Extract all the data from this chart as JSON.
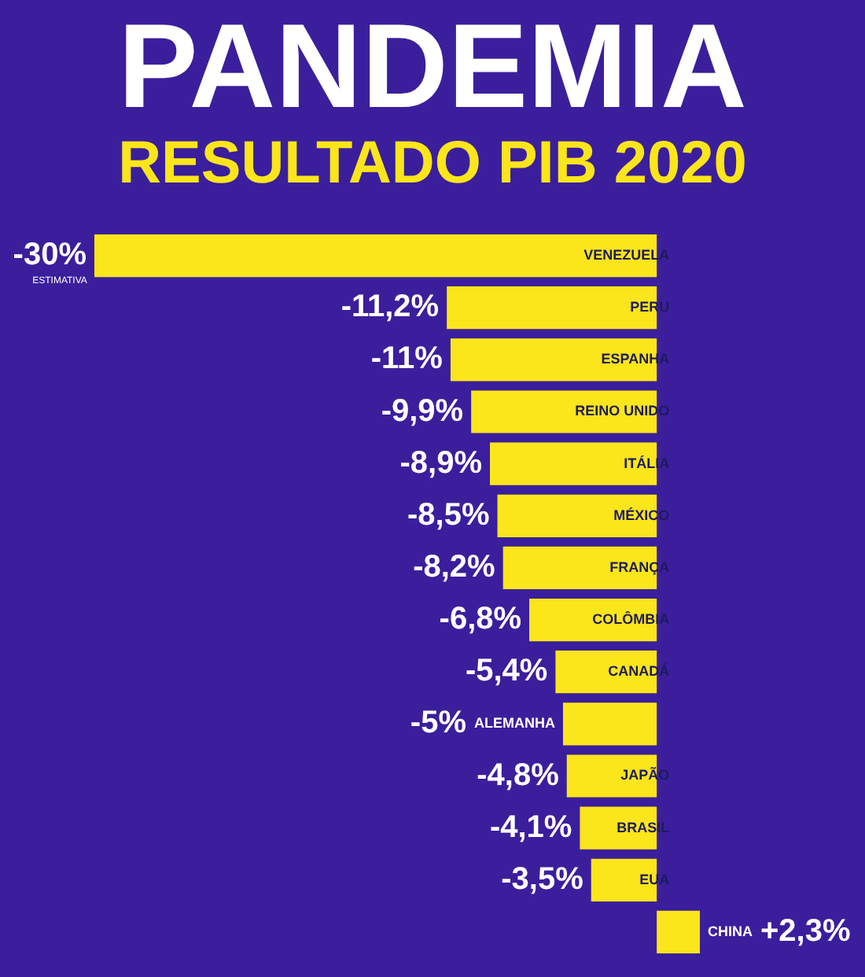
{
  "chart_data": {
    "type": "bar",
    "orientation": "horizontal",
    "title": "PANDEMIA",
    "subtitle": "RESULTADO PIB 2020",
    "categories": [
      "VENEZUELA",
      "PERU",
      "ESPANHA",
      "REINO UNIDO",
      "ITÁLIA",
      "MÉXICO",
      "FRANÇA",
      "COLÔMBIA",
      "CANADÁ",
      "ALEMANHA",
      "JAPÃO",
      "BRASIL",
      "EUA",
      "CHINA"
    ],
    "values": [
      -30,
      -11.2,
      -11,
      -9.9,
      -8.9,
      -8.5,
      -8.2,
      -6.8,
      -5.4,
      -5,
      -4.8,
      -4.1,
      -3.5,
      2.3
    ],
    "value_labels": [
      "-30%",
      "-11,2%",
      "-11%",
      "-9,9%",
      "-8,9%",
      "-8,5%",
      "-8,2%",
      "-6,8%",
      "-5,4%",
      "-5%",
      "-4,8%",
      "-4,1%",
      "-3,5%",
      "+2,3%"
    ],
    "color": "#fbe51b",
    "annotations": [
      {
        "text": "ESTIMATIVA",
        "x": -30,
        "y": "VENEZUELA"
      }
    ]
  }
}
